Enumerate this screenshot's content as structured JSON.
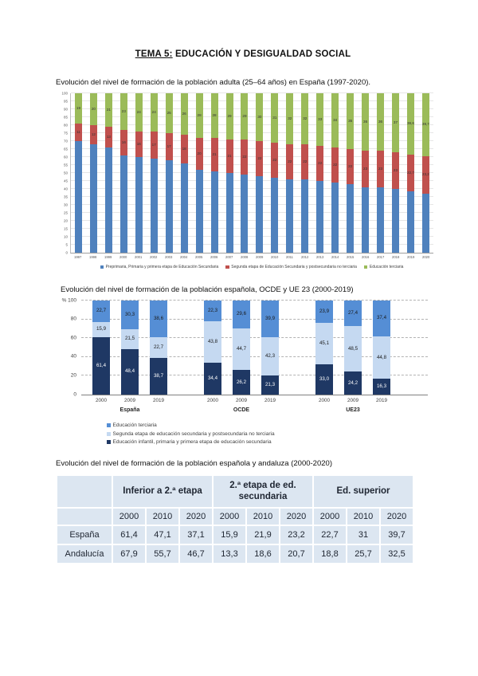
{
  "page_title": {
    "underlined": "TEMA 5:",
    "rest": " EDUCACIÓN Y DESIGUALDAD SOCIAL"
  },
  "captions": {
    "chart1": "Evolución del nivel de formación de la población adulta (25–64 años) en España (1997-2020).",
    "chart2": "Evolución del nivel de formación de la población española, OCDE y UE 23 (2000-2019)",
    "table": "Evolución del nivel de formación de la población española y andaluza (2000-2020)"
  },
  "chart_data": [
    {
      "type": "bar",
      "stacked": true,
      "title": "Evolución del nivel de formación de la población adulta (25–64 años) en España (1997-2020).",
      "categories": [
        "1997",
        "1998",
        "1999",
        "2000",
        "2001",
        "2002",
        "2003",
        "2004",
        "2005",
        "2006",
        "2007",
        "2008",
        "2009",
        "2010",
        "2011",
        "2012",
        "2013",
        "2014",
        "2015",
        "2016",
        "2017",
        "2018",
        "2019",
        "2020"
      ],
      "series": [
        {
          "name": "Preprimaria, Primaria y primera etapa de Educación Secundaria",
          "color": "#4f81bd",
          "values": [
            70,
            68,
            66,
            61,
            60,
            59,
            58,
            56,
            52,
            51,
            50,
            49,
            48,
            47,
            46,
            46,
            45,
            44,
            43,
            41,
            41,
            40,
            38.7,
            37.1
          ],
          "labels": null
        },
        {
          "name": "Segunda etapa de Educación Secundaria y postsecundaria no terciaria",
          "color": "#c0504d",
          "values": [
            11,
            12,
            13,
            16,
            16,
            17,
            17,
            18,
            20,
            21,
            21,
            22,
            22,
            22,
            22,
            22,
            22,
            22,
            22,
            23,
            23,
            23,
            22.7,
            23.2
          ],
          "labels": [
            "11",
            "12",
            "13",
            "16",
            "16",
            "17",
            "17",
            "18",
            "20",
            "21",
            "21",
            "22",
            "22",
            "22",
            "22",
            "22",
            "22",
            "22",
            "22",
            "23",
            "23",
            "23",
            "22,7",
            "23,2"
          ]
        },
        {
          "name": "Educación terciaria",
          "color": "#9bbb59",
          "values": [
            19,
            20,
            21,
            23,
            24,
            24,
            25,
            26,
            28,
            28,
            29,
            29,
            30,
            31,
            32,
            32,
            33,
            34,
            35,
            36,
            36,
            37,
            38.6,
            39.7
          ],
          "labels": [
            "19",
            "20",
            "21",
            "23",
            "24",
            "24",
            "25",
            "26",
            "28",
            "28",
            "29",
            "29",
            "30",
            "31",
            "32",
            "32",
            "33",
            "34",
            "35",
            "36",
            "36",
            "37",
            "38,6",
            "39,7"
          ]
        }
      ],
      "ylim": [
        0,
        100
      ],
      "y_tick_step": 5,
      "grid": true,
      "legend_position": "bottom"
    },
    {
      "type": "bar",
      "stacked": true,
      "title": "Evolución del nivel de formación de la población española, OCDE y UE 23 (2000-2019)",
      "y_label": "%",
      "y_ticks": [
        0,
        20,
        40,
        60,
        80,
        100
      ],
      "ylim": [
        0,
        100
      ],
      "grid": true,
      "series_names_bottom_to_top": [
        "Educación infantil, primaria y primera etapa de educación secundaria",
        "Segunda etapa de educación secundaria y postsecundaria no terciaria",
        "Educación terciaria"
      ],
      "colors_bottom_to_top": [
        "#1f3864",
        "#c5d9f1",
        "#558ed5"
      ],
      "groups": [
        {
          "label": "España",
          "bars": [
            {
              "year": "2000",
              "values": [
                61.4,
                15.9,
                22.7
              ],
              "labels": [
                "61,4",
                "15,9",
                "22,7"
              ]
            },
            {
              "year": "2009",
              "values": [
                48.4,
                21.5,
                30.3
              ],
              "labels": [
                "48,4",
                "21,5",
                "30,3"
              ]
            },
            {
              "year": "2019",
              "values": [
                38.7,
                22.7,
                38.6
              ],
              "labels": [
                "38,7",
                "22,7",
                "38,6"
              ]
            }
          ]
        },
        {
          "label": "OCDE",
          "bars": [
            {
              "year": "2000",
              "values": [
                34.4,
                43.8,
                22.3
              ],
              "labels": [
                "34,4",
                "43,8",
                "22,3"
              ]
            },
            {
              "year": "2009",
              "values": [
                26.2,
                44.7,
                29.6
              ],
              "labels": [
                "26,2",
                "44,7",
                "29,6"
              ]
            },
            {
              "year": "2019",
              "values": [
                21.3,
                42.3,
                39.9
              ],
              "labels": [
                "21,3",
                "42,3",
                "39,9"
              ]
            }
          ]
        },
        {
          "label": "UE23",
          "bars": [
            {
              "year": "2000",
              "values": [
                33.0,
                45.1,
                23.9
              ],
              "labels": [
                "33,0",
                "45,1",
                "23,9"
              ]
            },
            {
              "year": "2009",
              "values": [
                24.2,
                48.5,
                27.4
              ],
              "labels": [
                "24,2",
                "48,5",
                "27,4"
              ]
            },
            {
              "year": "2019",
              "values": [
                16.3,
                44.8,
                37.4
              ],
              "labels": [
                "16,3",
                "44,8",
                "37,4"
              ]
            }
          ]
        }
      ],
      "legend": [
        {
          "label": "Educación terciaria",
          "color": "#558ed5"
        },
        {
          "label": "Segunda etapa de educación secundaria y postsecundaria no terciaria",
          "color": "#c5d9f1"
        },
        {
          "label": "Educación infantil, primaria y primera etapa de educación secundaria",
          "color": "#1f3864"
        }
      ]
    }
  ],
  "table": {
    "title": "Evolución del nivel de formación de la población española y andaluza (2000-2020)",
    "col_groups": [
      "Inferior a 2.ª etapa",
      "2.ª etapa de ed. secundaria",
      "Ed. superior"
    ],
    "years": [
      "2000",
      "2010",
      "2020"
    ],
    "rows": [
      {
        "label": "España",
        "values": [
          "61,4",
          "47,1",
          "37,1",
          "15,9",
          "21,9",
          "23,2",
          "22,7",
          "31",
          "39,7"
        ]
      },
      {
        "label": "Andalucía",
        "values": [
          "67,9",
          "55,7",
          "46,7",
          "13,3",
          "18,6",
          "20,7",
          "18,8",
          "25,7",
          "32,5"
        ]
      }
    ]
  }
}
